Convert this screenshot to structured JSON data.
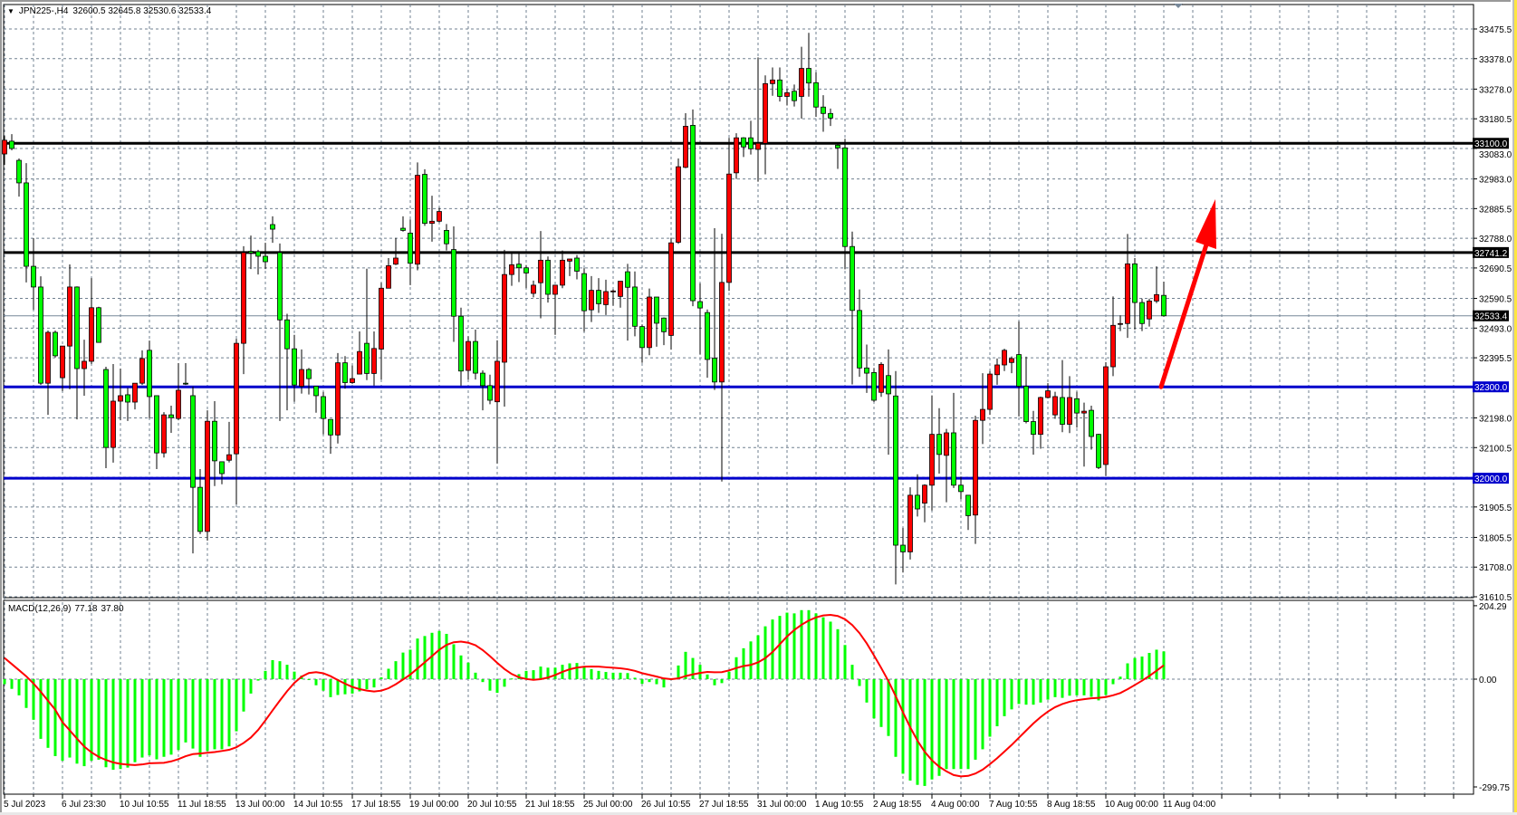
{
  "header": {
    "symbol": "JPN225-,H4",
    "ohlc": "32600.5 32645.8 32530.6 32533.4"
  },
  "macd": {
    "label": "MACD(12,26,9)",
    "main_value": "77.18",
    "signal_value": "37.80",
    "axis_ticks": [
      "204.29",
      "0.00",
      "-299.75"
    ],
    "histogram_color": "#00ff00",
    "signal_color": "#ff0000",
    "signal_first_values": [
      59,
      42,
      25,
      8,
      -12,
      -35,
      -60,
      -85
    ],
    "histogram": [
      -14,
      -27,
      -45,
      -80,
      -113,
      -166,
      -191,
      -214,
      -227,
      -218,
      -235,
      -242,
      -227,
      -224,
      -245,
      -252,
      -250,
      -246,
      -231,
      -218,
      -212,
      -223,
      -216,
      -210,
      -197,
      -176,
      -193,
      -216,
      -200,
      -195,
      -195,
      -187,
      -145,
      -90,
      -40,
      -4,
      23,
      53,
      50,
      40,
      21,
      10,
      0,
      -17,
      -32,
      -50,
      -44,
      -42,
      -40,
      -34,
      -28,
      -23,
      5,
      29,
      50,
      74,
      82,
      113,
      120,
      129,
      134,
      126,
      97,
      66,
      46,
      18,
      -8,
      -32,
      -38,
      -21,
      2,
      14,
      23,
      25,
      35,
      32,
      32,
      40,
      44,
      45,
      35,
      28,
      23,
      20,
      18,
      18,
      17,
      4,
      -13,
      -8,
      -14,
      -23,
      0,
      38,
      76,
      59,
      40,
      13,
      -17,
      -11,
      21,
      61,
      86,
      105,
      122,
      147,
      166,
      176,
      185,
      183,
      192,
      192,
      183,
      172,
      160,
      139,
      95,
      40,
      -19,
      -65,
      -109,
      -133,
      -158,
      -216,
      -263,
      -282,
      -294,
      -297,
      -279,
      -269,
      -250,
      -250,
      -250,
      -250,
      -224,
      -195,
      -160,
      -131,
      -103,
      -84,
      -69,
      -71,
      -71,
      -65,
      -57,
      -50,
      -52,
      -46,
      -45,
      -45,
      -49,
      -59,
      -44,
      -14,
      7,
      44,
      59,
      63,
      73,
      82,
      77.18
    ]
  },
  "price_axis": {
    "ticks": [
      "33475.5",
      "33378.0",
      "33278.0",
      "33180.5",
      "33083.0",
      "32983.0",
      "32885.5",
      "32788.0",
      "32690.5",
      "32590.5",
      "32493.0",
      "32395.5",
      "32198.0",
      "32100.5",
      "31905.5",
      "31805.5",
      "31708.0",
      "31610.5"
    ]
  },
  "levels": [
    {
      "price": 33100.0,
      "label": "33100.0",
      "color": "#000000"
    },
    {
      "price": 32741.2,
      "label": "32741.2",
      "color": "#000000"
    },
    {
      "price": 32300.0,
      "label": "32300.0",
      "color": "#0000cc"
    },
    {
      "price": 32000.0,
      "label": "32000.0",
      "color": "#0000cc"
    }
  ],
  "bid": {
    "price": 32533.4,
    "label": "32533.4",
    "color": "#778899"
  },
  "time_axis": {
    "labels": [
      "5 Jul 2023",
      "6 Jul 23:30",
      "10 Jul 10:55",
      "11 Jul 18:55",
      "13 Jul 00:00",
      "14 Jul 10:55",
      "17 Jul 18:55",
      "19 Jul 00:00",
      "20 Jul 10:55",
      "21 Jul 18:55",
      "25 Jul 00:00",
      "26 Jul 10:55",
      "27 Jul 18:55",
      "31 Jul 00:00",
      "1 Aug 10:55",
      "2 Aug 18:55",
      "4 Aug 00:00",
      "7 Aug 10:55",
      "8 Aug 18:55",
      "10 Aug 00:00",
      "11 Aug 04:00"
    ]
  },
  "colors": {
    "bull_candle": "#ff0000",
    "bear_candle": "#00ff00",
    "grid": "#708090",
    "annotation_arrow": "#ff0000"
  },
  "annotation": {
    "type": "arrow-up",
    "from_price": 32300.0,
    "to_price": 32890.0
  },
  "chart_data": {
    "type": "candlestick",
    "timeframe": "H4",
    "ylim": [
      31610.5,
      33475.5
    ],
    "grid": true,
    "ohlc": [
      [
        33065,
        33124,
        33029,
        33110
      ],
      [
        33107,
        33130,
        33077,
        33083
      ],
      [
        33044,
        33050,
        32925,
        32970
      ],
      [
        32970,
        33035,
        32643,
        32696
      ],
      [
        32696,
        32788,
        32553,
        32628
      ],
      [
        32628,
        32663,
        32306,
        32312
      ],
      [
        32312,
        32485,
        32208,
        32479
      ],
      [
        32479,
        32485,
        32396,
        32402
      ],
      [
        32330,
        32434,
        32286,
        32434
      ],
      [
        32434,
        32702,
        32292,
        32628
      ],
      [
        32628,
        32630,
        32193,
        32360
      ],
      [
        32360,
        32455,
        32271,
        32384
      ],
      [
        32384,
        32657,
        32375,
        32560
      ],
      [
        32560,
        32563,
        32446,
        32446
      ],
      [
        32357,
        32366,
        32033,
        32101
      ],
      [
        32101,
        32375,
        32051,
        32253
      ],
      [
        32253,
        32360,
        32190,
        32271
      ],
      [
        32274,
        32297,
        32188,
        32250
      ],
      [
        32250,
        32312,
        32226,
        32312
      ],
      [
        32312,
        32420,
        32306,
        32393
      ],
      [
        32420,
        32452,
        32196,
        32268
      ],
      [
        32271,
        32271,
        32030,
        32083
      ],
      [
        32083,
        32217,
        32068,
        32208
      ],
      [
        32208,
        32238,
        32149,
        32199
      ],
      [
        32196,
        32378,
        32190,
        32289
      ],
      [
        32312,
        32378,
        32306,
        32310
      ],
      [
        32271,
        32301,
        31753,
        31970
      ],
      [
        31970,
        32030,
        31816,
        31825
      ],
      [
        31825,
        32223,
        31795,
        32187
      ],
      [
        32187,
        32253,
        31974,
        32057
      ],
      [
        32054,
        32054,
        31980,
        32015
      ],
      [
        32059,
        32185,
        32052,
        32077
      ],
      [
        32080,
        32458,
        31914,
        32443
      ],
      [
        32443,
        32762,
        32342,
        32741
      ],
      [
        32745,
        32797,
        32687,
        32740
      ],
      [
        32744,
        32750,
        32669,
        32729
      ],
      [
        32729,
        32773,
        32687,
        32711
      ],
      [
        32833,
        32860,
        32773,
        32818
      ],
      [
        32741,
        32771,
        32188,
        32520
      ],
      [
        32520,
        32540,
        32223,
        32425
      ],
      [
        32425,
        32471,
        32251,
        32306
      ],
      [
        32302,
        32423,
        32278,
        32357
      ],
      [
        32357,
        32362,
        32275,
        32327
      ],
      [
        32302,
        32302,
        32215,
        32271
      ],
      [
        32268,
        32283,
        32144,
        32196
      ],
      [
        32193,
        32193,
        32080,
        32142
      ],
      [
        32142,
        32411,
        32114,
        32379
      ],
      [
        32379,
        32401,
        32294,
        32314
      ],
      [
        32314,
        32370,
        32310,
        32327
      ],
      [
        32342,
        32482,
        32342,
        32416
      ],
      [
        32443,
        32688,
        32322,
        32344
      ],
      [
        32344,
        32482,
        32304,
        32426
      ],
      [
        32424,
        32642,
        32324,
        32624
      ],
      [
        32624,
        32723,
        32624,
        32698
      ],
      [
        32703,
        32789,
        32700,
        32723
      ],
      [
        32821,
        32860,
        32810,
        32814
      ],
      [
        32805,
        32850,
        32634,
        32706
      ],
      [
        32703,
        33037,
        32683,
        32995
      ],
      [
        32998,
        33015,
        32829,
        32837
      ],
      [
        32837,
        32928,
        32777,
        32844
      ],
      [
        32844,
        32888,
        32840,
        32876
      ],
      [
        32814,
        32835,
        32748,
        32770
      ],
      [
        32751,
        32827,
        32448,
        32532
      ],
      [
        32532,
        32560,
        32304,
        32352
      ],
      [
        32354,
        32466,
        32324,
        32449
      ],
      [
        32449,
        32488,
        32324,
        32345
      ],
      [
        32345,
        32354,
        32223,
        32304
      ],
      [
        32304,
        32340,
        32243,
        32256
      ],
      [
        32251,
        32453,
        32048,
        32384
      ],
      [
        32381,
        32750,
        32235,
        32669
      ],
      [
        32669,
        32738,
        32632,
        32701
      ],
      [
        32703,
        32738,
        32644,
        32691
      ],
      [
        32691,
        32700,
        32624,
        32674
      ],
      [
        32607,
        32649,
        32594,
        32634
      ],
      [
        32642,
        32812,
        32525,
        32716
      ],
      [
        32716,
        32728,
        32577,
        32604
      ],
      [
        32604,
        32634,
        32471,
        32634
      ],
      [
        32634,
        32748,
        32624,
        32716
      ],
      [
        32713,
        32720,
        32664,
        32720
      ],
      [
        32723,
        32733,
        32653,
        32680
      ],
      [
        32672,
        32690,
        32481,
        32550
      ],
      [
        32553,
        32664,
        32513,
        32617
      ],
      [
        32617,
        32657,
        32543,
        32573
      ],
      [
        32570,
        32652,
        32536,
        32613
      ],
      [
        32615,
        32620,
        32567,
        32615
      ],
      [
        32597,
        32647,
        32560,
        32647
      ],
      [
        32678,
        32704,
        32452,
        32627
      ],
      [
        32628,
        32679,
        32466,
        32499
      ],
      [
        32498,
        32505,
        32379,
        32429
      ],
      [
        32429,
        32623,
        32404,
        32595
      ],
      [
        32595,
        32595,
        32432,
        32509
      ],
      [
        32526,
        32528,
        32437,
        32481
      ],
      [
        32469,
        32790,
        32422,
        32773
      ],
      [
        32775,
        33050,
        32770,
        33023
      ],
      [
        33021,
        33199,
        33018,
        33156
      ],
      [
        33159,
        33211,
        32565,
        32583
      ],
      [
        32580,
        32640,
        32407,
        32559
      ],
      [
        32544,
        32554,
        32330,
        32390
      ],
      [
        32394,
        32821,
        32290,
        32316
      ],
      [
        32316,
        32803,
        31989,
        32643
      ],
      [
        32643,
        33118,
        32615,
        32999
      ],
      [
        33003,
        33133,
        32983,
        33118
      ],
      [
        33118,
        33120,
        33055,
        33088
      ],
      [
        33118,
        33174,
        33063,
        33082
      ],
      [
        33080,
        33382,
        32974,
        33100
      ],
      [
        33100,
        33323,
        32998,
        33296
      ],
      [
        33296,
        33349,
        33256,
        33308
      ],
      [
        33308,
        33349,
        33237,
        33254
      ],
      [
        33254,
        33278,
        33224,
        33266
      ],
      [
        33271,
        33293,
        33221,
        33240
      ],
      [
        33254,
        33417,
        33181,
        33346
      ],
      [
        33346,
        33463,
        33253,
        33298
      ],
      [
        33299,
        33333,
        33187,
        33219
      ],
      [
        33219,
        33258,
        33138,
        33198
      ],
      [
        33198,
        33214,
        33157,
        33183
      ],
      [
        33094,
        33100,
        33016,
        33085
      ],
      [
        33085,
        33115,
        32686,
        32761
      ],
      [
        32761,
        32810,
        32308,
        32551
      ],
      [
        32551,
        32620,
        32333,
        32362
      ],
      [
        32362,
        32439,
        32280,
        32345
      ],
      [
        32347,
        32362,
        32250,
        32256
      ],
      [
        32282,
        32381,
        32267,
        32374
      ],
      [
        32337,
        32423,
        32077,
        32277
      ],
      [
        32270,
        32352,
        31651,
        31780
      ],
      [
        31780,
        31837,
        31690,
        31758
      ],
      [
        31758,
        31970,
        31733,
        31944
      ],
      [
        31944,
        32013,
        31874,
        31899
      ],
      [
        31918,
        31980,
        31855,
        31977
      ],
      [
        31977,
        32272,
        31894,
        32144
      ],
      [
        32144,
        32230,
        32015,
        32078
      ],
      [
        32075,
        32162,
        31921,
        32149
      ],
      [
        32149,
        32280,
        31968,
        31977
      ],
      [
        31977,
        32005,
        31931,
        31956
      ],
      [
        31944,
        31944,
        31830,
        31877
      ],
      [
        31879,
        32205,
        31784,
        32190
      ],
      [
        32190,
        32345,
        32112,
        32226
      ],
      [
        32226,
        32352,
        32208,
        32342
      ],
      [
        32340,
        32393,
        32307,
        32372
      ],
      [
        32372,
        32425,
        32352,
        32420
      ],
      [
        32380,
        32400,
        32345,
        32393
      ],
      [
        32406,
        32515,
        32203,
        32302
      ],
      [
        32302,
        32399,
        32180,
        32186
      ],
      [
        32186,
        32221,
        32077,
        32144
      ],
      [
        32144,
        32268,
        32097,
        32265
      ],
      [
        32265,
        32312,
        32262,
        32287
      ],
      [
        32208,
        32284,
        32195,
        32268
      ],
      [
        32265,
        32388,
        32151,
        32177
      ],
      [
        32177,
        32335,
        32148,
        32265
      ],
      [
        32261,
        32284,
        32166,
        32214
      ],
      [
        32214,
        32248,
        32038,
        32220
      ],
      [
        32223,
        32238,
        32094,
        32137
      ],
      [
        32144,
        32146,
        32030,
        32035
      ],
      [
        32045,
        32381,
        32007,
        32366
      ],
      [
        32366,
        32597,
        32335,
        32502
      ],
      [
        32508,
        32535,
        32483,
        32508
      ],
      [
        32508,
        32802,
        32461,
        32704
      ],
      [
        32704,
        32723,
        32488,
        32577
      ],
      [
        32577,
        32590,
        32483,
        32508
      ],
      [
        32523,
        32590,
        32498,
        32582
      ],
      [
        32582,
        32696,
        32575,
        32603
      ],
      [
        32600.5,
        32645.8,
        32530.6,
        32533.4
      ]
    ]
  }
}
